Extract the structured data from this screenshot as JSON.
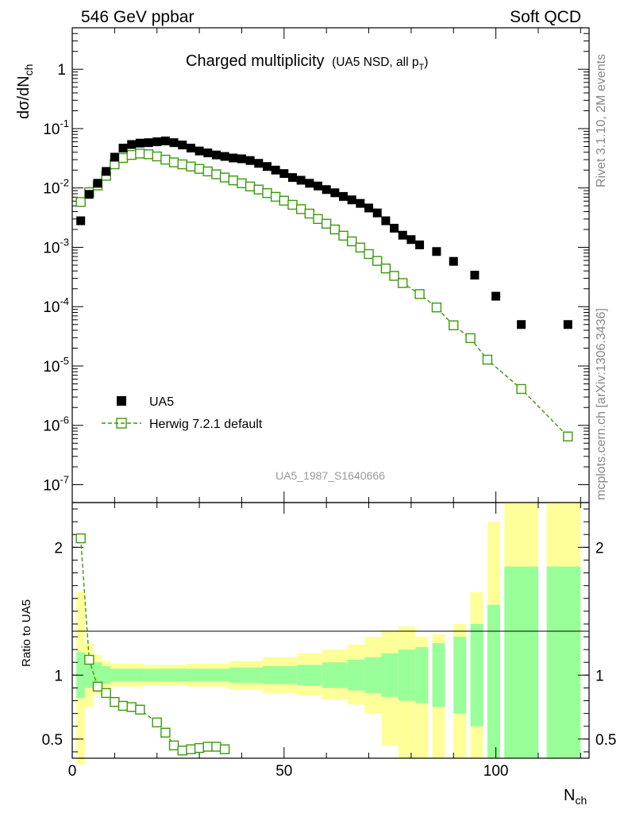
{
  "header": {
    "left": "546 GeV ppbar",
    "right": "Soft QCD"
  },
  "side_labels": {
    "rivet": "Rivet 3.1.10,  2M events",
    "mcplots": "mcplots.cern.ch [arXiv:1306.3436]"
  },
  "plot": {
    "title": "Charged multiplicity",
    "title_suffix": "(UA5 NSD, all p",
    "title_suffix_sub": "T",
    "title_suffix_end": ")",
    "watermark": "UA5_1987_S1640666"
  },
  "axes": {
    "ylabel_main": "dσ/dN",
    "ylabel_main_sub": "ch",
    "ylabel_ratio": "Ratio to UA5",
    "xlabel": "N",
    "xlabel_sub": "ch"
  },
  "legend": [
    {
      "label": "UA5"
    },
    {
      "label": "Herwig 7.2.1 default"
    }
  ],
  "colors": {
    "data": "#000000",
    "mc": "#3a9a0a",
    "band_stat": "#99ff99",
    "band_tot": "#ffff99"
  },
  "chart_data": [
    {
      "type": "scatter",
      "title": "Charged multiplicity (UA5 NSD, all pT)",
      "xlabel": "Nch",
      "ylabel": "dσ/dNch",
      "xlim": [
        0,
        122
      ],
      "ylim": [
        5e-08,
        5
      ],
      "yscale": "log",
      "yticks": [
        {
          "label": "10",
          "sup": "-7",
          "value": 1e-07
        },
        {
          "label": "10",
          "sup": "-6",
          "value": 1e-06
        },
        {
          "label": "10",
          "sup": "-5",
          "value": 1e-05
        },
        {
          "label": "10",
          "sup": "-4",
          "value": 0.0001
        },
        {
          "label": "10",
          "sup": "-3",
          "value": 0.001
        },
        {
          "label": "10",
          "sup": "-2",
          "value": 0.01
        },
        {
          "label": "10",
          "sup": "-1",
          "value": 0.1
        },
        {
          "label": "1",
          "sup": "",
          "value": 1
        }
      ],
      "series": [
        {
          "name": "UA5",
          "x": [
            2,
            4,
            6,
            8,
            10,
            12,
            14,
            16,
            18,
            20,
            22,
            24,
            26,
            28,
            30,
            32,
            34,
            36,
            38,
            40,
            42,
            44,
            46,
            48,
            50,
            52,
            54,
            56,
            58,
            60,
            62,
            64,
            66,
            68,
            70,
            72,
            74,
            76,
            78,
            80,
            82,
            86,
            90,
            95,
            100,
            106,
            117
          ],
          "y": [
            0.0028,
            0.0078,
            0.012,
            0.019,
            0.033,
            0.047,
            0.054,
            0.057,
            0.058,
            0.06,
            0.062,
            0.058,
            0.053,
            0.047,
            0.042,
            0.039,
            0.036,
            0.034,
            0.032,
            0.031,
            0.029,
            0.026,
            0.023,
            0.02,
            0.0175,
            0.015,
            0.0135,
            0.012,
            0.0108,
            0.0094,
            0.0083,
            0.0072,
            0.0063,
            0.0055,
            0.0046,
            0.0038,
            0.0028,
            0.0021,
            0.0016,
            0.00135,
            0.0011,
            0.00085,
            0.00058,
            0.00034,
            0.00015,
            5e-05,
            5e-05
          ]
        },
        {
          "name": "Herwig 7.2.1 default",
          "x": [
            2,
            4,
            6,
            8,
            10,
            12,
            14,
            16,
            18,
            20,
            22,
            24,
            26,
            28,
            30,
            32,
            34,
            36,
            38,
            40,
            42,
            44,
            46,
            48,
            50,
            52,
            54,
            56,
            58,
            60,
            62,
            64,
            66,
            68,
            70,
            72,
            74,
            76,
            78,
            82,
            86,
            90,
            94,
            98,
            106,
            117
          ],
          "y": [
            0.0058,
            0.0085,
            0.011,
            0.016,
            0.025,
            0.032,
            0.036,
            0.038,
            0.037,
            0.034,
            0.03,
            0.027,
            0.025,
            0.023,
            0.021,
            0.019,
            0.017,
            0.015,
            0.0134,
            0.012,
            0.0106,
            0.0094,
            0.0082,
            0.0071,
            0.0061,
            0.0052,
            0.0044,
            0.0037,
            0.003,
            0.0025,
            0.002,
            0.00157,
            0.00126,
            0.00099,
            0.00077,
            0.00059,
            0.00044,
            0.00033,
            0.00025,
            0.000163,
            9.7e-05,
            4.85e-05,
            2.95e-05,
            1.28e-05,
            4.1e-06,
            6.5e-07
          ]
        }
      ]
    },
    {
      "type": "scatter",
      "ylabel": "Ratio to UA5",
      "xlabel": "Nch",
      "xlim": [
        0,
        122
      ],
      "ylim": [
        0.35,
        2.35
      ],
      "xticks": [
        0,
        50,
        100
      ],
      "yticks": [
        0.5,
        1,
        2
      ],
      "reference": 1,
      "bands": [
        {
          "x0": 1,
          "x1": 3,
          "stat": [
            0.82,
            1.18
          ],
          "tot": [
            0.3,
            1.65
          ]
        },
        {
          "x0": 3,
          "x1": 5,
          "stat": [
            0.9,
            1.1
          ],
          "tot": [
            0.75,
            1.25
          ]
        },
        {
          "x0": 5,
          "x1": 7,
          "stat": [
            0.9,
            1.1
          ],
          "tot": [
            0.85,
            1.16
          ]
        },
        {
          "x0": 7,
          "x1": 9,
          "stat": [
            0.93,
            1.07
          ],
          "tot": [
            0.89,
            1.11
          ]
        },
        {
          "x0": 9,
          "x1": 17,
          "stat": [
            0.95,
            1.05
          ],
          "tot": [
            0.91,
            1.09
          ]
        },
        {
          "x0": 17,
          "x1": 27,
          "stat": [
            0.95,
            1.05
          ],
          "tot": [
            0.92,
            1.08
          ]
        },
        {
          "x0": 27,
          "x1": 37,
          "stat": [
            0.95,
            1.05
          ],
          "tot": [
            0.91,
            1.09
          ]
        },
        {
          "x0": 37,
          "x1": 45,
          "stat": [
            0.94,
            1.06
          ],
          "tot": [
            0.89,
            1.11
          ]
        },
        {
          "x0": 45,
          "x1": 53,
          "stat": [
            0.93,
            1.07
          ],
          "tot": [
            0.86,
            1.14
          ]
        },
        {
          "x0": 53,
          "x1": 59,
          "stat": [
            0.92,
            1.08
          ],
          "tot": [
            0.84,
            1.17
          ]
        },
        {
          "x0": 59,
          "x1": 65,
          "stat": [
            0.9,
            1.1
          ],
          "tot": [
            0.81,
            1.2
          ]
        },
        {
          "x0": 65,
          "x1": 69,
          "stat": [
            0.88,
            1.12
          ],
          "tot": [
            0.77,
            1.24
          ]
        },
        {
          "x0": 69,
          "x1": 73,
          "stat": [
            0.86,
            1.14
          ],
          "tot": [
            0.7,
            1.3
          ]
        },
        {
          "x0": 73,
          "x1": 77,
          "stat": [
            0.83,
            1.17
          ],
          "tot": [
            0.45,
            1.35
          ]
        },
        {
          "x0": 77,
          "x1": 81,
          "stat": [
            0.8,
            1.2
          ],
          "tot": [
            0.35,
            1.38
          ]
        },
        {
          "x0": 81,
          "x1": 84,
          "stat": [
            0.78,
            1.22
          ],
          "tot": [
            0.35,
            1.3
          ]
        },
        {
          "x0": 85,
          "x1": 88,
          "stat": [
            0.75,
            1.25
          ],
          "tot": [
            0.35,
            1.32
          ]
        },
        {
          "x0": 90,
          "x1": 93,
          "stat": [
            0.7,
            1.3
          ],
          "tot": [
            0.35,
            1.4
          ]
        },
        {
          "x0": 94,
          "x1": 97,
          "stat": [
            0.6,
            1.4
          ],
          "tot": [
            0.35,
            1.65
          ]
        },
        {
          "x0": 98,
          "x1": 101,
          "stat": [
            0.35,
            1.55
          ],
          "tot": [
            0.35,
            2.2
          ]
        },
        {
          "x0": 102,
          "x1": 110,
          "stat": [
            0.35,
            1.85
          ],
          "tot": [
            0.35,
            2.35
          ]
        },
        {
          "x0": 112,
          "x1": 120,
          "stat": [
            0.35,
            1.85
          ],
          "tot": [
            0.35,
            2.35
          ]
        }
      ],
      "series": [
        {
          "name": "Herwig 7.2.1 default",
          "x": [
            2,
            4,
            6,
            8,
            10,
            12,
            14,
            16,
            20,
            22,
            24,
            26,
            28,
            30,
            32,
            34,
            36
          ],
          "y": [
            2.07,
            1.12,
            0.91,
            0.86,
            0.79,
            0.76,
            0.75,
            0.73,
            0.63,
            0.55,
            0.45,
            0.41,
            0.42,
            0.43,
            0.44,
            0.44,
            0.42
          ]
        }
      ]
    }
  ]
}
